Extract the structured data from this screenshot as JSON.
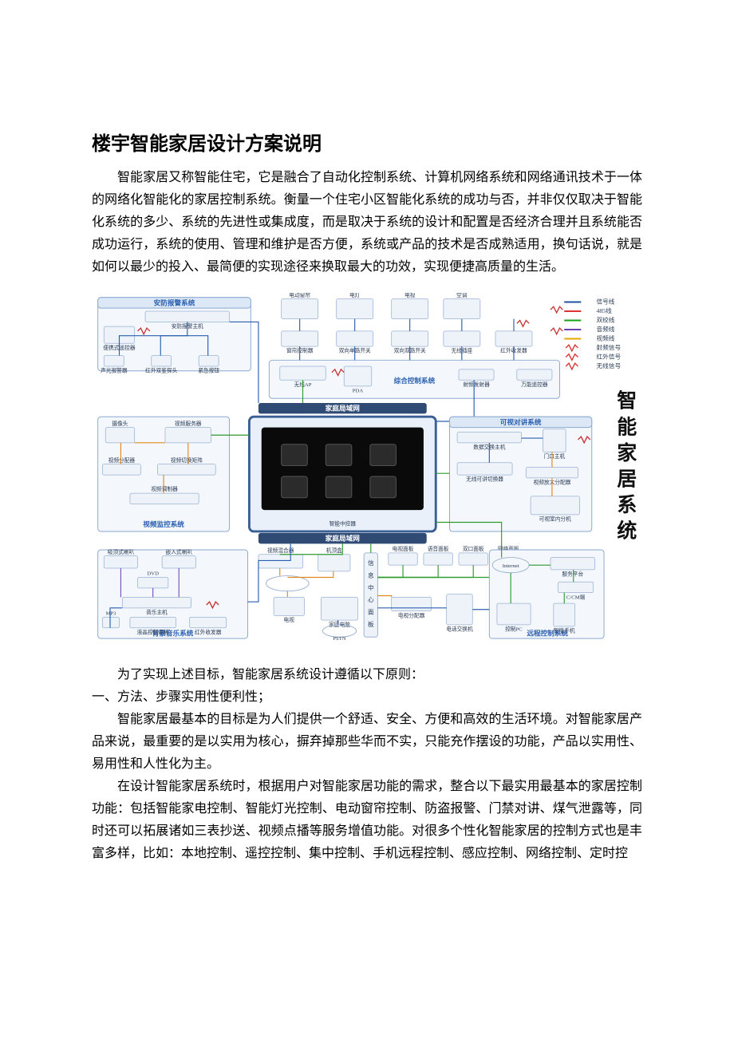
{
  "doc": {
    "title": "楼宇智能家居设计方案说明",
    "p1": "智能家居又称智能住宅，它是融合了自动化控制系统、计算机网络系统和网络通讯技术于一体的网络化智能化的家居控制系统。衡量一个住宅小区智能化系统的成功与否，并非仅仅取决于智能化系统的多少、系统的先进性或集成度，而是取决于系统的设计和配置是否经济合理并且系统能否成功运行，系统的使用、管理和维护是否方便，系统或产品的技术是否成熟适用，换句话说，就是如何以最少的投入、最简便的实现途径来换取最大的功效，实现便捷高质量的生活。",
    "p2": "为了实现上述目标，智能家居系统设计遵循以下原则：",
    "p3": "一、方法、步骤实用性便利性；",
    "p4": "智能家居最基本的目标是为人们提供一个舒适、安全、方便和高效的生活环境。对智能家居产品来说，最重要的是以实用为核心，摒弃掉那些华而不实，只能充作摆设的功能，产品以实用性、易用性和人性化为主。",
    "p5": "在设计智能家居系统时，根据用户对智能家居功能的需求，整合以下最实用最基本的家居控制功能：包括智能家电控制、智能灯光控制、电动窗帘控制、防盗报警、门禁对讲、煤气泄露等，同时还可以拓展诸如三表抄送、视频点播等服务增值功能。对很多个性化智能家居的控制方式也是丰富多样，比如：本地控制、遥控控制、集中控制、手机远程控制、感应控制、网络控制、定时控"
  },
  "diagram": {
    "side_title": "智能家居系统",
    "groups": {
      "alarm": {
        "label": "安防报警系统",
        "color": "#2a5fb0",
        "items": [
          "安防报警主机",
          "便携式遥控器",
          "声光报警器",
          "红外双鉴探头",
          "紧急按钮"
        ]
      },
      "top_devices": {
        "items": [
          "电动窗帘",
          "电灯",
          "电视",
          "空调"
        ]
      },
      "top_ctrl": {
        "items": [
          "窗帘控制器",
          "双向单路开关",
          "双向双路开关",
          "无线插座",
          "红外收发器"
        ]
      },
      "integrated": {
        "label": "综合控制系统",
        "color": "#2a5fb0",
        "items": [
          "无线AP",
          "PDA",
          "射频发射器",
          "万能遥控器"
        ]
      },
      "lan_top": "家庭局域网",
      "lan_bot": "家庭局域网",
      "center": "智能中控器",
      "video": {
        "label": "视频监控系统",
        "color": "#2a5fb0",
        "items": [
          "摄像头",
          "视频服务器",
          "视频分配器",
          "视频切换矩阵",
          "视频调制器"
        ]
      },
      "intercom": {
        "label": "可视对讲系统",
        "color": "#2a5fb0",
        "items": [
          "数据交换主机",
          "门口主机",
          "无线可讲切换器",
          "视频放大分配器",
          "可视室内分机"
        ]
      },
      "music": {
        "label": "背景音乐系统",
        "color": "#2a5fb0",
        "items": [
          "吸顶式喇叭",
          "嵌入式喇叭",
          "DVD",
          "音乐主机",
          "MP3",
          "液晶控制面板",
          "红外收发器"
        ]
      },
      "media": {
        "items": [
          "视频混合器",
          "机顶盒",
          "电视",
          "家庭电脑",
          "PSTN",
          "电视分配器",
          "电话交换机"
        ]
      },
      "panels": {
        "items": [
          "电视面板",
          "语音面板",
          "双口面板",
          "网络面板"
        ]
      },
      "remote": {
        "label": "远程控制系统",
        "color": "#2a5fb0",
        "items": [
          "Internet",
          "服务平台",
          "C/CM端",
          "控制PC",
          "智能手机"
        ]
      },
      "hub": "信息中心面板"
    },
    "legend": {
      "title_items": [
        {
          "label": "信号线",
          "color": "#1e50a2"
        },
        {
          "label": "485线",
          "color": "#d33"
        },
        {
          "label": "双绞线",
          "color": "#17a017"
        },
        {
          "label": "音频线",
          "color": "#6a3fb0"
        },
        {
          "label": "视频线",
          "color": "#e6a800"
        },
        {
          "label": "射频信号",
          "color": "#d33",
          "zig": true
        },
        {
          "label": "红外信号",
          "color": "#d33",
          "zig": true
        },
        {
          "label": "无线信号",
          "color": "#d33",
          "zig": true
        }
      ]
    },
    "colors": {
      "group_border": "#8aa7cf",
      "group_fill": "#f4f8fd",
      "group_title_fill": "#dce8f6",
      "lan_fill": "#2f4a73",
      "lan_text": "#ffffff",
      "center_border": "#3a5f95",
      "center_fill": "#e9f0fa",
      "screen_fill": "#0a0a0a",
      "wire_blue": "#2a5fb0",
      "wire_red": "#c83232",
      "wire_green": "#2e9a2e",
      "wire_orange": "#e08a1e",
      "device_fill": "#eef3fa",
      "device_border": "#9ab1d2",
      "label_text": "#2a3b55",
      "side_title_color": "#111"
    },
    "font": {
      "group_title": 9,
      "item": 7,
      "lan": 9,
      "side": 26,
      "legend": 8
    }
  }
}
